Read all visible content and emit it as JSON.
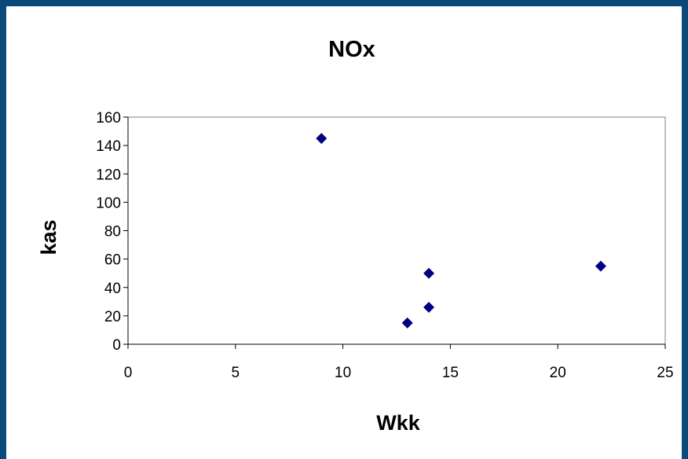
{
  "chart_data": {
    "type": "scatter",
    "title": "NOx",
    "xlabel": "Wkk",
    "ylabel": "kas",
    "xlim": [
      0,
      25
    ],
    "ylim": [
      0,
      160
    ],
    "xticks": [
      0,
      5,
      10,
      15,
      20,
      25
    ],
    "yticks": [
      0,
      20,
      40,
      60,
      80,
      100,
      120,
      140,
      160
    ],
    "grid": false,
    "legend": "none",
    "marker": "diamond",
    "colors": {
      "marker": "#000080",
      "frame_border": "#0a4a7a"
    },
    "series": [
      {
        "points": [
          {
            "x": 9,
            "y": 145
          },
          {
            "x": 13,
            "y": 15
          },
          {
            "x": 14,
            "y": 26
          },
          {
            "x": 14,
            "y": 50
          },
          {
            "x": 22,
            "y": 55
          }
        ]
      }
    ]
  }
}
